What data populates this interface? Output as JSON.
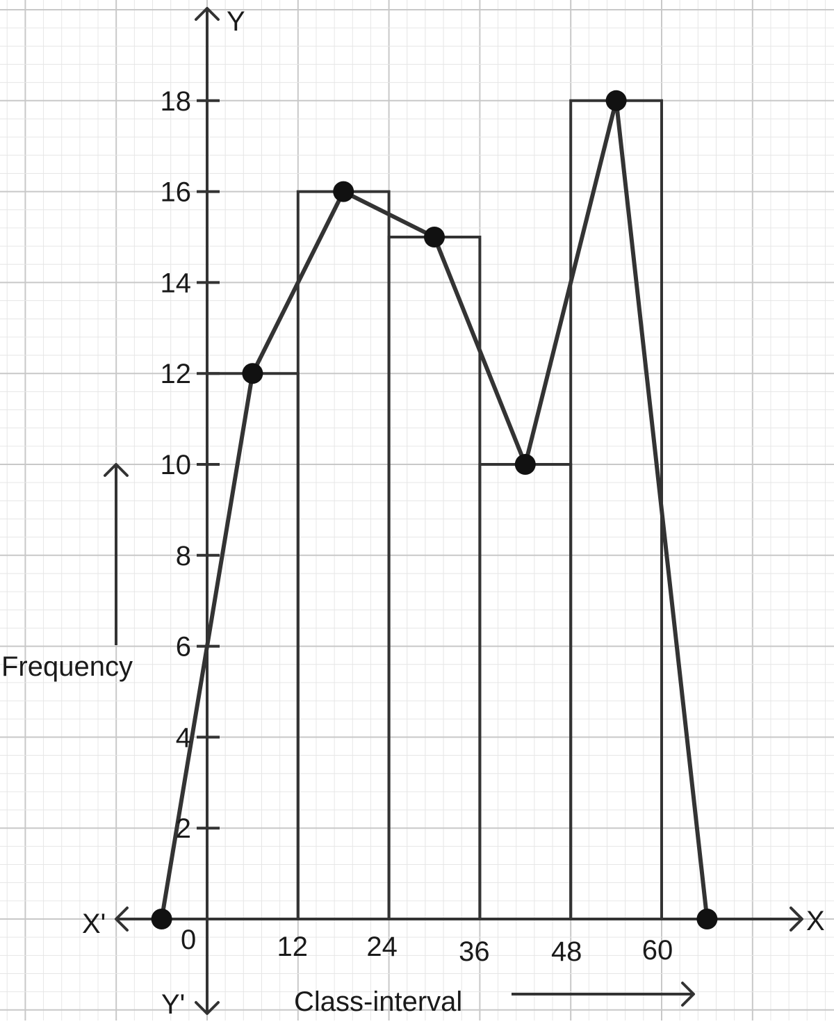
{
  "chart_data": {
    "type": "histogram-with-frequency-polygon",
    "x_axis": {
      "label": "Class-interval",
      "end_label_positive": "X",
      "end_label_negative": "X'",
      "origin_label": "0",
      "ticks": [
        "12",
        "24",
        "36",
        "48",
        "60"
      ]
    },
    "y_axis": {
      "label": "Frequency",
      "end_label_positive": "Y",
      "end_label_negative": "Y'",
      "ticks": [
        "2",
        "4",
        "6",
        "8",
        "10",
        "12",
        "14",
        "16",
        "18"
      ]
    },
    "bars": [
      {
        "from": 0,
        "to": 12,
        "frequency": 12
      },
      {
        "from": 12,
        "to": 24,
        "frequency": 16
      },
      {
        "from": 24,
        "to": 36,
        "frequency": 15
      },
      {
        "from": 36,
        "to": 48,
        "frequency": 10
      },
      {
        "from": 48,
        "to": 60,
        "frequency": 18
      }
    ],
    "polygon_points": [
      {
        "x": -6,
        "y": 0
      },
      {
        "x": 6,
        "y": 12
      },
      {
        "x": 18,
        "y": 16
      },
      {
        "x": 30,
        "y": 15
      },
      {
        "x": 42,
        "y": 10
      },
      {
        "x": 54,
        "y": 18
      },
      {
        "x": 66,
        "y": 0
      }
    ],
    "colors": {
      "ink": "#333333",
      "grid_major": "#c8c8c8",
      "grid_minor": "#e6e6e6"
    }
  }
}
